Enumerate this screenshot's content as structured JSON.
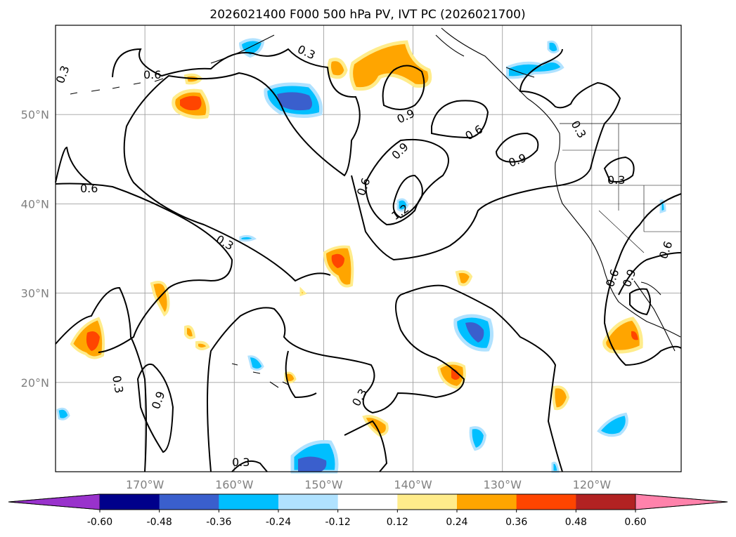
{
  "chart_data": {
    "type": "map-contour",
    "title": "2026021400 F000 500 hPa PV, IVT PC (2026021700)",
    "x_ticks": [
      {
        "lon": -170,
        "label": "170°W"
      },
      {
        "lon": -160,
        "label": "160°W"
      },
      {
        "lon": -150,
        "label": "150°W"
      },
      {
        "lon": -140,
        "label": "140°W"
      },
      {
        "lon": -130,
        "label": "130°W"
      },
      {
        "lon": -120,
        "label": "120°W"
      }
    ],
    "y_ticks": [
      {
        "lat": 20,
        "label": "20°N"
      },
      {
        "lat": 30,
        "label": "30°N"
      },
      {
        "lat": 40,
        "label": "40°N"
      },
      {
        "lat": 50,
        "label": "50°N"
      }
    ],
    "lon_range": [
      -180,
      -110
    ],
    "lat_range": [
      10,
      60
    ],
    "grid": true,
    "contour_labels": [
      "0.3",
      "0.6",
      "0.9",
      "1.2"
    ],
    "colorbar": {
      "ticks": [
        "-0.60",
        "-0.48",
        "-0.36",
        "-0.24",
        "-0.12",
        "0.12",
        "0.24",
        "0.36",
        "0.48",
        "0.60"
      ],
      "bounds": [
        -0.6,
        -0.48,
        -0.36,
        -0.24,
        -0.12,
        0.12,
        0.24,
        0.36,
        0.48,
        0.6
      ],
      "colors": [
        "#9932cc",
        "#00008b",
        "#3a5fcd",
        "#00bfff",
        "#b0e2ff",
        "#ffffff",
        "#ffec8b",
        "#ffa500",
        "#ff4500",
        "#b22222",
        "#ff82ab"
      ]
    }
  }
}
